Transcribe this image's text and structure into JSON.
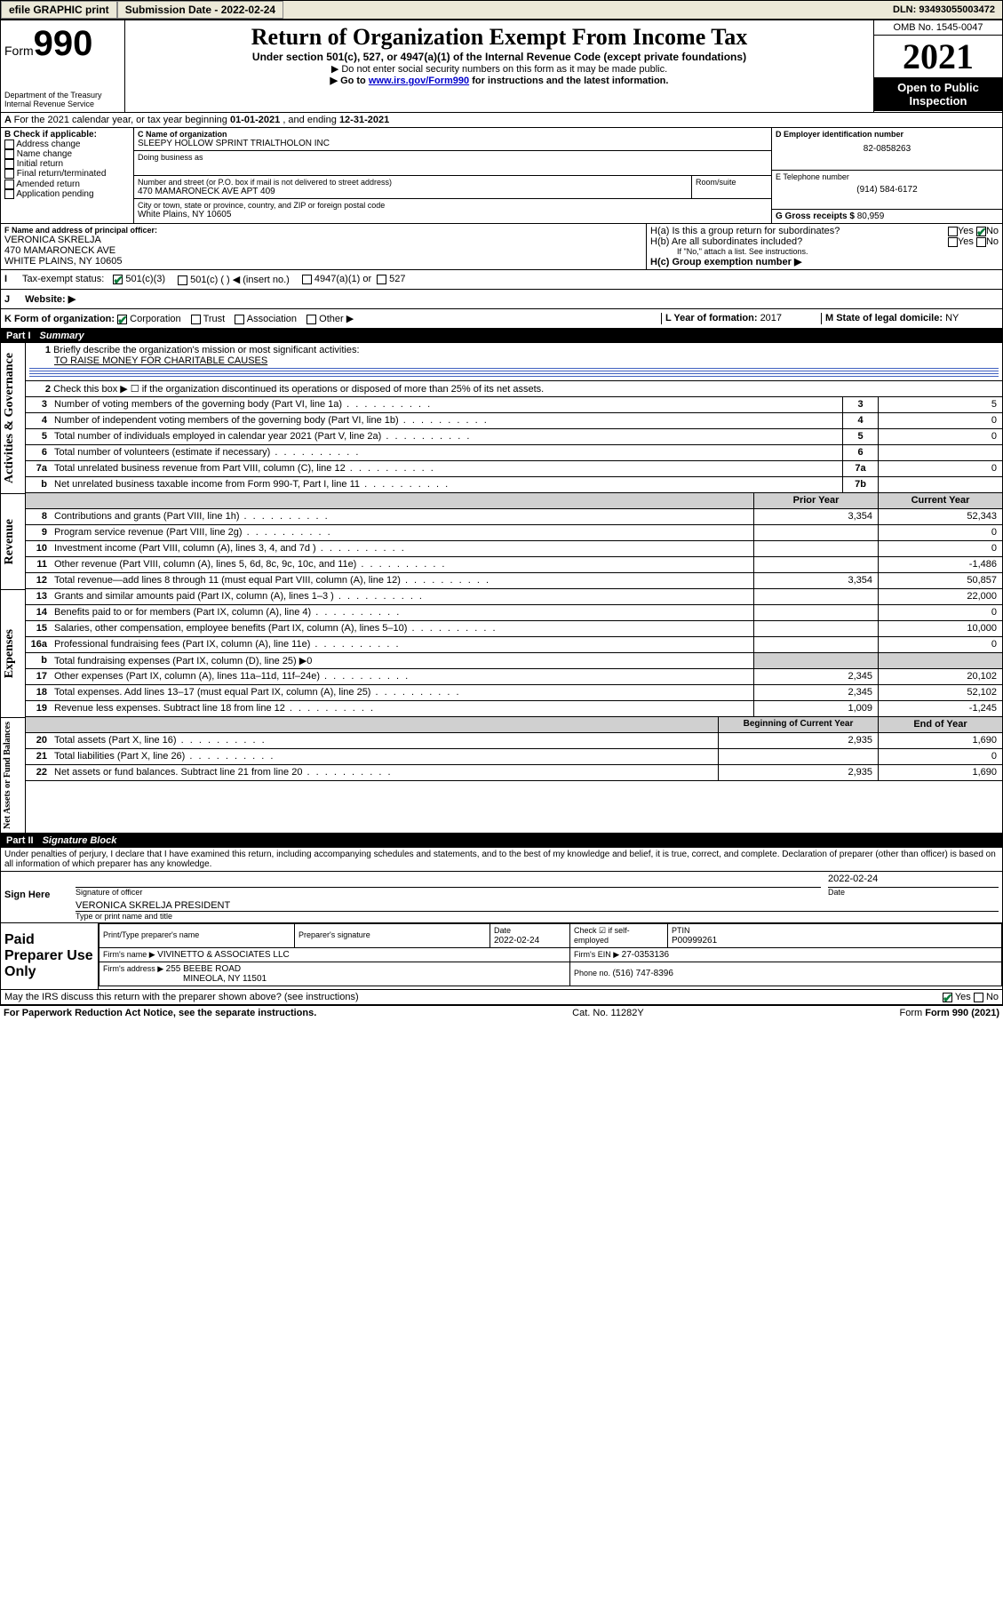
{
  "topbar": {
    "efile": "efile GRAPHIC print",
    "sub_label": "Submission Date - ",
    "sub_date": "2022-02-24",
    "dln_label": "DLN: ",
    "dln": "93493055003472"
  },
  "header": {
    "form_word": "Form",
    "form_num": "990",
    "dept": "Department of the Treasury",
    "irs": "Internal Revenue Service",
    "title": "Return of Organization Exempt From Income Tax",
    "sub1": "Under section 501(c), 527, or 4947(a)(1) of the Internal Revenue Code (except private foundations)",
    "sub2": "▶ Do not enter social security numbers on this form as it may be made public.",
    "sub3_pre": "▶ Go to ",
    "sub3_link": "www.irs.gov/Form990",
    "sub3_post": " for instructions and the latest information.",
    "omb": "OMB No. 1545-0047",
    "year": "2021",
    "open": "Open to Public Inspection"
  },
  "A": {
    "text_pre": "For the 2021 calendar year, or tax year beginning ",
    "begin": "01-01-2021",
    "mid": " , and ending ",
    "end": "12-31-2021"
  },
  "B": {
    "label": "B Check if applicable:",
    "opts": [
      "Address change",
      "Name change",
      "Initial return",
      "Final return/terminated",
      "Amended return",
      "Application pending"
    ]
  },
  "C": {
    "name_lbl": "C Name of organization",
    "name": "SLEEPY HOLLOW SPRINT TRIALTHOLON INC",
    "dba_lbl": "Doing business as",
    "addr_lbl": "Number and street (or P.O. box if mail is not delivered to street address)",
    "room_lbl": "Room/suite",
    "addr": "470 MAMARONECK AVE APT 409",
    "city_lbl": "City or town, state or province, country, and ZIP or foreign postal code",
    "city": "White Plains, NY  10605"
  },
  "D": {
    "lbl": "D Employer identification number",
    "val": "82-0858263"
  },
  "E": {
    "lbl": "E Telephone number",
    "val": "(914) 584-6172"
  },
  "G": {
    "lbl": "G Gross receipts $ ",
    "val": "80,959"
  },
  "F": {
    "lbl": "F Name and address of principal officer:",
    "name": "VERONICA SKRELJA",
    "addr1": "470 MAMARONECK AVE",
    "addr2": "WHITE PLAINS, NY  10605"
  },
  "H": {
    "ha": "H(a)  Is this a group return for subordinates?",
    "hb": "H(b)  Are all subordinates included?",
    "hb_note": "If \"No,\" attach a list. See instructions.",
    "hc": "H(c)  Group exemption number ▶",
    "yes": "Yes",
    "no": "No"
  },
  "I": {
    "lbl": "Tax-exempt status:",
    "o1": "501(c)(3)",
    "o2": "501(c) (  ) ◀ (insert no.)",
    "o3": "4947(a)(1) or",
    "o4": "527"
  },
  "J": {
    "lbl": "Website: ▶"
  },
  "K": {
    "lbl": "K Form of organization:",
    "o1": "Corporation",
    "o2": "Trust",
    "o3": "Association",
    "o4": "Other ▶"
  },
  "L": {
    "lbl": "L Year of formation: ",
    "val": "2017"
  },
  "M": {
    "lbl": "M State of legal domicile: ",
    "val": "NY"
  },
  "partI": {
    "name": "Part I",
    "title": "Summary"
  },
  "summary": {
    "l1_lbl": "Briefly describe the organization's mission or most significant activities:",
    "l1_val": "TO RAISE MONEY FOR CHARITABLE CAUSES",
    "l2": "Check this box ▶ ☐  if the organization discontinued its operations or disposed of more than 25% of its net assets.",
    "lines_gov": [
      {
        "n": "3",
        "d": "Number of voting members of the governing body (Part VI, line 1a)",
        "box": "3",
        "v": "5"
      },
      {
        "n": "4",
        "d": "Number of independent voting members of the governing body (Part VI, line 1b)",
        "box": "4",
        "v": "0"
      },
      {
        "n": "5",
        "d": "Total number of individuals employed in calendar year 2021 (Part V, line 2a)",
        "box": "5",
        "v": "0"
      },
      {
        "n": "6",
        "d": "Total number of volunteers (estimate if necessary)",
        "box": "6",
        "v": ""
      },
      {
        "n": "7a",
        "d": "Total unrelated business revenue from Part VIII, column (C), line 12",
        "box": "7a",
        "v": "0"
      },
      {
        "n": "b",
        "bold": false,
        "d": "Net unrelated business taxable income from Form 990-T, Part I, line 11",
        "box": "7b",
        "v": ""
      }
    ],
    "col_prior": "Prior Year",
    "col_curr": "Current Year",
    "lines_rev": [
      {
        "n": "8",
        "d": "Contributions and grants (Part VIII, line 1h)",
        "p": "3,354",
        "c": "52,343"
      },
      {
        "n": "9",
        "d": "Program service revenue (Part VIII, line 2g)",
        "p": "",
        "c": "0"
      },
      {
        "n": "10",
        "d": "Investment income (Part VIII, column (A), lines 3, 4, and 7d )",
        "p": "",
        "c": "0"
      },
      {
        "n": "11",
        "d": "Other revenue (Part VIII, column (A), lines 5, 6d, 8c, 9c, 10c, and 11e)",
        "p": "",
        "c": "-1,486"
      },
      {
        "n": "12",
        "d": "Total revenue—add lines 8 through 11 (must equal Part VIII, column (A), line 12)",
        "p": "3,354",
        "c": "50,857"
      }
    ],
    "lines_exp": [
      {
        "n": "13",
        "d": "Grants and similar amounts paid (Part IX, column (A), lines 1–3 )",
        "p": "",
        "c": "22,000"
      },
      {
        "n": "14",
        "d": "Benefits paid to or for members (Part IX, column (A), line 4)",
        "p": "",
        "c": "0"
      },
      {
        "n": "15",
        "d": "Salaries, other compensation, employee benefits (Part IX, column (A), lines 5–10)",
        "p": "",
        "c": "10,000"
      },
      {
        "n": "16a",
        "d": "Professional fundraising fees (Part IX, column (A), line 11e)",
        "p": "",
        "c": "0"
      },
      {
        "n": "b",
        "d": "Total fundraising expenses (Part IX, column (D), line 25) ▶0",
        "grey": true
      },
      {
        "n": "17",
        "d": "Other expenses (Part IX, column (A), lines 11a–11d, 11f–24e)",
        "p": "2,345",
        "c": "20,102"
      },
      {
        "n": "18",
        "d": "Total expenses. Add lines 13–17 (must equal Part IX, column (A), line 25)",
        "p": "2,345",
        "c": "52,102"
      },
      {
        "n": "19",
        "d": "Revenue less expenses. Subtract line 18 from line 12",
        "p": "1,009",
        "c": "-1,245"
      }
    ],
    "col_beg": "Beginning of Current Year",
    "col_end": "End of Year",
    "lines_na": [
      {
        "n": "20",
        "d": "Total assets (Part X, line 16)",
        "p": "2,935",
        "c": "1,690"
      },
      {
        "n": "21",
        "d": "Total liabilities (Part X, line 26)",
        "p": "",
        "c": "0"
      },
      {
        "n": "22",
        "d": "Net assets or fund balances. Subtract line 21 from line 20",
        "p": "2,935",
        "c": "1,690"
      }
    ],
    "side_gov": "Activities & Governance",
    "side_rev": "Revenue",
    "side_exp": "Expenses",
    "side_na": "Net Assets or Fund Balances"
  },
  "partII": {
    "name": "Part II",
    "title": "Signature Block"
  },
  "sig": {
    "decl": "Under penalties of perjury, I declare that I have examined this return, including accompanying schedules and statements, and to the best of my knowledge and belief, it is true, correct, and complete. Declaration of preparer (other than officer) is based on all information of which preparer has any knowledge.",
    "sign_here": "Sign Here",
    "sig_officer": "Signature of officer",
    "date": "Date",
    "sig_date": "2022-02-24",
    "name_title": "VERONICA SKRELJA  PRESIDENT",
    "type_name": "Type or print name and title",
    "paid": "Paid Preparer Use Only",
    "prep_name_lbl": "Print/Type preparer's name",
    "prep_sig_lbl": "Preparer's signature",
    "prep_date_lbl": "Date",
    "prep_date": "2022-02-24",
    "check_lbl": "Check ☑ if self-employed",
    "ptin_lbl": "PTIN",
    "ptin": "P00999261",
    "firm_name_lbl": "Firm's name  ▶ ",
    "firm_name": "VIVINETTO & ASSOCIATES LLC",
    "firm_ein_lbl": "Firm's EIN ▶ ",
    "firm_ein": "27-0353136",
    "firm_addr_lbl": "Firm's address ▶ ",
    "firm_addr1": "255 BEEBE ROAD",
    "firm_addr2": "MINEOLA, NY  11501",
    "phone_lbl": "Phone no. ",
    "phone": "(516) 747-8396",
    "discuss": "May the IRS discuss this return with the preparer shown above? (see instructions)",
    "yes": "Yes",
    "no": "No"
  },
  "footer": {
    "pra": "For Paperwork Reduction Act Notice, see the separate instructions.",
    "cat": "Cat. No. 11282Y",
    "form": "Form 990 (2021)"
  },
  "colors": {
    "topbar_bg": "#ece9d8",
    "link": "#0000cc",
    "check": "#0a7a3a",
    "rule": "#4060c0"
  }
}
